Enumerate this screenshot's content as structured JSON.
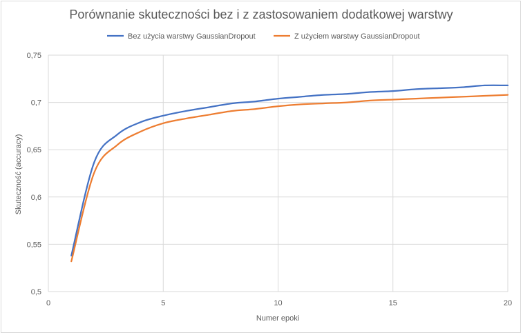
{
  "chart_data": {
    "type": "line",
    "title": "Porównanie skuteczności bez i z zastosowaniem dodatkowej warstwy",
    "xlabel": "Numer epoki",
    "ylabel": "Skuteczność (accuracy)",
    "xlim": [
      0,
      20
    ],
    "ylim": [
      0.5,
      0.75
    ],
    "x_ticks": [
      0,
      5,
      10,
      15,
      20
    ],
    "x_tick_labels": [
      "0",
      "5",
      "10",
      "15",
      "20"
    ],
    "y_ticks": [
      0.5,
      0.55,
      0.6,
      0.65,
      0.7,
      0.75
    ],
    "y_tick_labels": [
      "0,5",
      "0,55",
      "0,6",
      "0,65",
      "0,7",
      "0,75"
    ],
    "grid": true,
    "legend_position": "top",
    "x": [
      1,
      2,
      3,
      4,
      5,
      6,
      7,
      8,
      9,
      10,
      11,
      12,
      13,
      14,
      15,
      16,
      17,
      18,
      19,
      20
    ],
    "series": [
      {
        "name": "Bez użycia warstwy GaussianDropout",
        "color": "#4472c4",
        "values": [
          0.538,
          0.637,
          0.666,
          0.679,
          0.686,
          0.691,
          0.695,
          0.699,
          0.701,
          0.704,
          0.706,
          0.708,
          0.709,
          0.711,
          0.712,
          0.714,
          0.715,
          0.716,
          0.718,
          0.718
        ]
      },
      {
        "name": "Z użyciem warstwy GaussianDropout",
        "color": "#ed7d31",
        "values": [
          0.532,
          0.626,
          0.655,
          0.669,
          0.678,
          0.683,
          0.687,
          0.691,
          0.693,
          0.696,
          0.698,
          0.699,
          0.7,
          0.702,
          0.703,
          0.704,
          0.705,
          0.706,
          0.707,
          0.708
        ]
      }
    ]
  }
}
